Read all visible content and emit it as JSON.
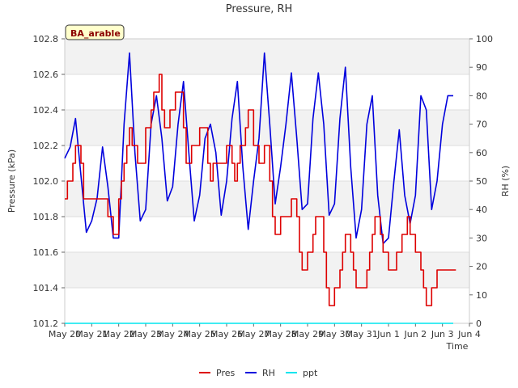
{
  "chart_data": {
    "type": "line",
    "title": "Pressure, RH",
    "site_label": "BA_arable",
    "xlabel": "Time",
    "ylabel_left": "Pressure (kPa)",
    "ylabel_right": "RH (%)",
    "x_ticks": [
      "May 20",
      "May 21",
      "May 22",
      "May 23",
      "May 24",
      "May 25",
      "May 26",
      "May 27",
      "May 28",
      "May 29",
      "May 30",
      "May 31",
      "Jun 1",
      "Jun 2",
      "Jun 3",
      "Jun 4"
    ],
    "y_left_ticks": [
      "101.2",
      "101.4",
      "101.6",
      "101.8",
      "102.0",
      "102.2",
      "102.4",
      "102.6",
      "102.8"
    ],
    "y_right_ticks": [
      "0",
      "10",
      "20",
      "30",
      "40",
      "50",
      "60",
      "70",
      "80",
      "90",
      "100"
    ],
    "y_left_range": [
      101.2,
      102.8
    ],
    "y_right_range": [
      0,
      100
    ],
    "x_range_days": [
      0,
      15
    ],
    "grid": "horizontal bands",
    "legend_position": "bottom-center",
    "series": [
      {
        "name": "Pres",
        "axis": "left",
        "color": "#dd0000",
        "x": [
          0.0,
          0.1,
          0.2,
          0.3,
          0.4,
          0.5,
          0.6,
          0.7,
          0.8,
          0.9,
          1.0,
          1.2,
          1.4,
          1.6,
          1.8,
          2.0,
          2.1,
          2.2,
          2.3,
          2.4,
          2.5,
          2.6,
          2.7,
          2.8,
          3.0,
          3.2,
          3.3,
          3.4,
          3.5,
          3.6,
          3.7,
          3.8,
          3.9,
          4.0,
          4.1,
          4.2,
          4.3,
          4.4,
          4.5,
          4.6,
          4.7,
          4.8,
          5.0,
          5.2,
          5.3,
          5.4,
          5.5,
          5.7,
          5.8,
          6.0,
          6.2,
          6.3,
          6.4,
          6.5,
          6.6,
          6.7,
          6.8,
          7.0,
          7.2,
          7.3,
          7.4,
          7.5,
          7.6,
          7.7,
          7.8,
          8.0,
          8.2,
          8.3,
          8.4,
          8.5,
          8.6,
          8.7,
          8.8,
          9.0,
          9.2,
          9.3,
          9.4,
          9.5,
          9.6,
          9.7,
          9.8,
          10.0,
          10.2,
          10.3,
          10.4,
          10.5,
          10.6,
          10.7,
          10.8,
          11.0,
          11.2,
          11.3,
          11.4,
          11.5,
          11.6,
          11.7,
          11.8,
          12.0,
          12.2,
          12.3,
          12.4,
          12.5,
          12.6,
          12.7,
          12.8,
          13.0,
          13.2,
          13.3,
          13.4,
          13.5,
          13.6,
          13.7,
          13.8,
          14.0,
          14.2,
          14.3,
          14.4,
          14.5
        ],
        "values": [
          101.9,
          102.0,
          102.0,
          102.1,
          102.2,
          102.2,
          102.1,
          101.9,
          101.9,
          101.9,
          101.9,
          101.9,
          101.9,
          101.8,
          101.7,
          101.9,
          102.0,
          102.1,
          102.2,
          102.3,
          102.2,
          102.2,
          102.1,
          102.1,
          102.3,
          102.4,
          102.5,
          102.5,
          102.6,
          102.4,
          102.3,
          102.3,
          102.4,
          102.4,
          102.5,
          102.5,
          102.5,
          102.3,
          102.1,
          102.1,
          102.2,
          102.2,
          102.3,
          102.3,
          102.1,
          102.0,
          102.1,
          102.1,
          102.1,
          102.2,
          102.1,
          102.0,
          102.1,
          102.2,
          102.2,
          102.3,
          102.4,
          102.2,
          102.1,
          102.1,
          102.2,
          102.2,
          102.0,
          101.8,
          101.7,
          101.8,
          101.8,
          101.8,
          101.9,
          101.9,
          101.8,
          101.6,
          101.5,
          101.6,
          101.7,
          101.8,
          101.8,
          101.8,
          101.6,
          101.4,
          101.3,
          101.4,
          101.5,
          101.6,
          101.7,
          101.7,
          101.6,
          101.5,
          101.4,
          101.4,
          101.5,
          101.6,
          101.7,
          101.8,
          101.8,
          101.7,
          101.6,
          101.5,
          101.5,
          101.6,
          101.6,
          101.7,
          101.7,
          101.8,
          101.7,
          101.6,
          101.5,
          101.4,
          101.3,
          101.3,
          101.4,
          101.4,
          101.5,
          101.5,
          101.5,
          101.5,
          101.5,
          101.5
        ]
      },
      {
        "name": "RH",
        "axis": "right",
        "color": "#0000dd",
        "x": [
          0.0,
          0.2,
          0.4,
          0.6,
          0.8,
          1.0,
          1.2,
          1.4,
          1.6,
          1.8,
          2.0,
          2.2,
          2.4,
          2.6,
          2.8,
          3.0,
          3.2,
          3.4,
          3.6,
          3.8,
          4.0,
          4.2,
          4.4,
          4.6,
          4.8,
          5.0,
          5.2,
          5.4,
          5.6,
          5.8,
          6.0,
          6.2,
          6.4,
          6.6,
          6.8,
          7.0,
          7.2,
          7.4,
          7.6,
          7.8,
          8.0,
          8.2,
          8.4,
          8.6,
          8.8,
          9.0,
          9.2,
          9.4,
          9.6,
          9.8,
          10.0,
          10.2,
          10.4,
          10.6,
          10.8,
          11.0,
          11.2,
          11.4,
          11.6,
          11.8,
          12.0,
          12.2,
          12.4,
          12.6,
          12.8,
          13.0,
          13.2,
          13.4,
          13.6,
          13.8,
          14.0,
          14.2,
          14.4
        ],
        "values": [
          58,
          62,
          72,
          52,
          32,
          36,
          44,
          62,
          48,
          30,
          30,
          70,
          95,
          60,
          36,
          40,
          70,
          80,
          65,
          43,
          48,
          70,
          85,
          60,
          36,
          45,
          65,
          70,
          60,
          38,
          50,
          72,
          85,
          55,
          33,
          50,
          65,
          95,
          70,
          42,
          55,
          70,
          88,
          65,
          40,
          42,
          72,
          88,
          70,
          38,
          42,
          72,
          90,
          55,
          30,
          40,
          70,
          80,
          45,
          28,
          30,
          50,
          68,
          45,
          35,
          45,
          80,
          75,
          40,
          50,
          70,
          80,
          80
        ]
      },
      {
        "name": "ppt",
        "axis": "right",
        "color": "#00e5ee",
        "x": [
          0.0,
          14.4
        ],
        "values": [
          0,
          0
        ]
      }
    ]
  }
}
